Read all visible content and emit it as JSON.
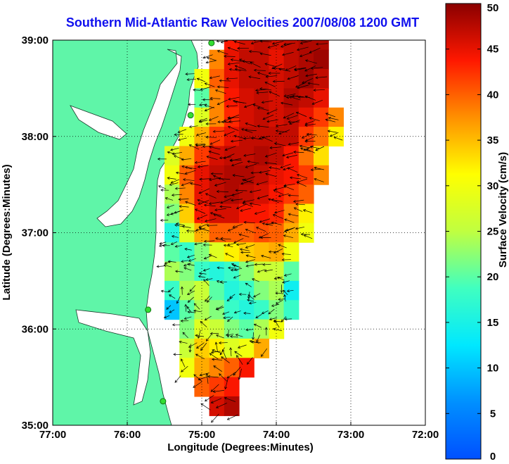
{
  "chart_data": {
    "type": "heatmap",
    "title": "Southern Mid-Atlantic Raw Velocities 2007/08/08 1200 GMT",
    "xlabel": "Longitude (Degrees:Minutes)",
    "ylabel": "Latitude (Degrees:Minutes)",
    "xlim": [
      -77,
      -72
    ],
    "ylim": [
      35,
      39
    ],
    "x_ticks": [
      -77,
      -76,
      -75,
      -74,
      -73,
      -72
    ],
    "x_tick_labels": [
      "77:00",
      "76:00",
      "75:00",
      "74:00",
      "73:00",
      "72:00"
    ],
    "y_ticks": [
      35,
      36,
      37,
      38,
      39
    ],
    "y_tick_labels": [
      "35:00",
      "36:00",
      "37:00",
      "38:00",
      "39:00"
    ],
    "grid": true,
    "colorbar": {
      "label": "Surface Velocity (cm/s)",
      "range": [
        0,
        50
      ],
      "ticks": [
        0,
        5,
        10,
        15,
        20,
        25,
        30,
        35,
        40,
        45,
        50
      ],
      "colormap": "jet"
    },
    "colors": {
      "land": "#5ff5a8",
      "water": "#ffffff",
      "title": "#1010ee",
      "station": "#33dd33"
    },
    "stations": [
      {
        "lon": -74.87,
        "lat": 38.97
      },
      {
        "lon": -75.15,
        "lat": 38.22
      },
      {
        "lon": -75.72,
        "lat": 36.2
      },
      {
        "lon": -75.52,
        "lat": 35.25
      }
    ],
    "speed_field": {
      "lons": [
        -75.6,
        -75.4,
        -75.2,
        -75.0,
        -74.8,
        -74.6,
        -74.4,
        -74.2,
        -74.0,
        -73.8,
        -73.6,
        -73.4,
        -73.2,
        -73.0
      ],
      "lats": [
        39.0,
        38.8,
        38.6,
        38.4,
        38.2,
        38.0,
        37.8,
        37.6,
        37.4,
        37.2,
        37.0,
        36.8,
        36.6,
        36.4,
        36.2,
        36.0,
        35.8,
        35.6,
        35.4,
        35.2,
        35.0
      ],
      "values": [
        [
          null,
          null,
          null,
          null,
          null,
          44,
          46,
          47,
          46,
          47,
          48,
          48,
          null,
          null
        ],
        [
          null,
          null,
          null,
          null,
          38,
          45,
          47,
          47,
          45,
          47,
          48,
          49,
          null,
          null
        ],
        [
          null,
          null,
          null,
          30,
          40,
          45,
          47,
          47,
          46,
          47,
          49,
          47,
          null,
          null
        ],
        [
          null,
          null,
          null,
          20,
          38,
          44,
          46,
          47,
          46,
          48,
          47,
          45,
          null,
          null
        ],
        [
          null,
          null,
          null,
          28,
          38,
          43,
          46,
          47,
          46,
          47,
          45,
          42,
          38,
          null
        ],
        [
          null,
          null,
          30,
          36,
          42,
          45,
          47,
          47,
          47,
          47,
          42,
          39,
          32,
          null
        ],
        [
          null,
          28,
          36,
          42,
          46,
          47,
          47,
          48,
          47,
          44,
          39,
          33,
          null,
          null
        ],
        [
          null,
          30,
          40,
          45,
          47,
          48,
          48,
          47,
          45,
          44,
          42,
          38,
          null,
          null
        ],
        [
          null,
          24,
          38,
          45,
          47,
          48,
          47,
          46,
          44,
          42,
          40,
          null,
          null,
          null
        ],
        [
          null,
          22,
          34,
          44,
          46,
          46,
          44,
          44,
          43,
          38,
          32,
          null,
          null,
          null
        ],
        [
          null,
          16,
          28,
          36,
          40,
          40,
          40,
          41,
          40,
          36,
          30,
          null,
          null,
          null
        ],
        [
          null,
          20,
          18,
          22,
          28,
          32,
          34,
          35,
          36,
          30,
          null,
          null,
          null,
          null
        ],
        [
          null,
          24,
          22,
          18,
          16,
          18,
          22,
          26,
          26,
          20,
          null,
          null,
          null,
          null
        ],
        [
          null,
          18,
          24,
          26,
          20,
          16,
          18,
          22,
          24,
          14,
          null,
          null,
          null,
          null
        ],
        [
          null,
          10,
          20,
          24,
          22,
          18,
          16,
          18,
          22,
          18,
          null,
          null,
          null,
          null
        ],
        [
          null,
          null,
          22,
          28,
          26,
          22,
          20,
          24,
          30,
          null,
          null,
          null,
          null,
          null
        ],
        [
          null,
          null,
          26,
          34,
          32,
          28,
          30,
          36,
          null,
          null,
          null,
          null,
          null,
          null
        ],
        [
          null,
          null,
          30,
          36,
          38,
          40,
          44,
          null,
          null,
          null,
          null,
          null,
          null,
          null
        ],
        [
          null,
          null,
          null,
          40,
          42,
          44,
          null,
          null,
          null,
          null,
          null,
          null,
          null,
          null
        ],
        [
          null,
          null,
          null,
          null,
          46,
          48,
          null,
          null,
          null,
          null,
          null,
          null,
          null,
          null
        ],
        [
          null,
          null,
          null,
          null,
          null,
          null,
          null,
          null,
          null,
          null,
          null,
          null,
          null,
          null
        ]
      ]
    }
  }
}
